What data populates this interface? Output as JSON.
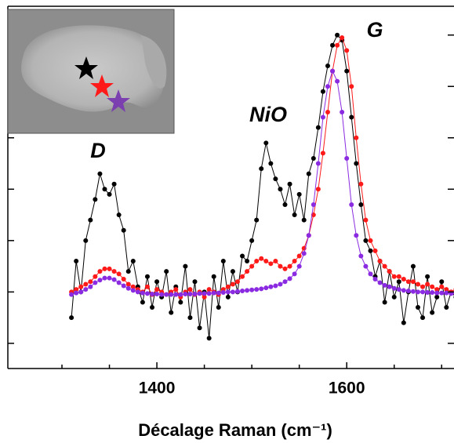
{
  "chart_data": {
    "type": "line",
    "xlabel": "Décalage Raman (cm⁻¹)",
    "annotations": [
      "D",
      "NiO",
      "G"
    ],
    "xlim": [
      1243,
      1713
    ],
    "ylim": [
      0.51,
      7.56
    ],
    "xticks": [
      1400,
      1600
    ],
    "xminor_ticks": [
      1300,
      1350,
      1450,
      1500,
      1550,
      1650,
      1700
    ],
    "yticks": [
      1,
      2,
      3,
      4,
      5,
      6,
      7
    ],
    "x": [
      1310,
      1315,
      1320,
      1325,
      1330,
      1335,
      1340,
      1345,
      1350,
      1355,
      1360,
      1365,
      1370,
      1375,
      1380,
      1385,
      1390,
      1395,
      1400,
      1405,
      1410,
      1415,
      1420,
      1425,
      1430,
      1435,
      1440,
      1445,
      1450,
      1455,
      1460,
      1465,
      1470,
      1475,
      1480,
      1485,
      1490,
      1495,
      1500,
      1505,
      1510,
      1515,
      1520,
      1525,
      1530,
      1535,
      1540,
      1545,
      1550,
      1555,
      1560,
      1565,
      1570,
      1575,
      1580,
      1585,
      1590,
      1595,
      1600,
      1605,
      1610,
      1615,
      1620,
      1625,
      1630,
      1635,
      1640,
      1645,
      1650,
      1655,
      1660,
      1665,
      1670,
      1675,
      1680,
      1685,
      1690,
      1695,
      1700,
      1705,
      1710,
      1715
    ],
    "series": [
      {
        "color": "#000000",
        "values": [
          1.5,
          2.6,
          2.0,
          3.0,
          3.4,
          3.8,
          4.3,
          4.0,
          3.9,
          4.1,
          3.5,
          3.2,
          2.4,
          2.6,
          2.1,
          1.8,
          2.3,
          1.7,
          2.2,
          1.9,
          2.4,
          1.6,
          2.1,
          1.8,
          2.5,
          1.5,
          2.2,
          1.3,
          2.0,
          1.1,
          2.3,
          1.7,
          2.6,
          1.9,
          2.4,
          2.0,
          2.7,
          2.6,
          3.0,
          3.4,
          4.4,
          4.9,
          4.5,
          4.2,
          4.0,
          3.7,
          4.1,
          3.5,
          3.9,
          3.4,
          4.3,
          4.6,
          5.2,
          5.9,
          6.4,
          6.8,
          7.0,
          6.9,
          6.3,
          5.4,
          4.5,
          3.7,
          3.0,
          2.8,
          2.3,
          2.6,
          1.8,
          2.4,
          1.9,
          2.2,
          1.4,
          2.0,
          2.5,
          1.7,
          1.5,
          2.3,
          1.6,
          1.9,
          2.2,
          1.7,
          2.0,
          1.9
        ]
      },
      {
        "color": "#ff1a1a",
        "values": [
          2.0,
          2.05,
          2.1,
          2.15,
          2.2,
          2.3,
          2.4,
          2.45,
          2.45,
          2.4,
          2.35,
          2.25,
          2.15,
          2.1,
          2.05,
          2.0,
          2.1,
          1.95,
          2.05,
          2.0,
          1.95,
          2.0,
          2.05,
          1.9,
          2.0,
          2.05,
          1.95,
          2.0,
          1.9,
          2.05,
          2.0,
          1.95,
          2.05,
          2.1,
          2.15,
          2.2,
          2.3,
          2.4,
          2.5,
          2.6,
          2.65,
          2.6,
          2.55,
          2.6,
          2.5,
          2.45,
          2.5,
          2.6,
          2.7,
          2.85,
          3.1,
          3.5,
          4.0,
          4.7,
          5.5,
          6.3,
          6.8,
          6.95,
          6.7,
          6.0,
          5.0,
          4.1,
          3.4,
          3.0,
          2.8,
          2.6,
          2.5,
          2.4,
          2.3,
          2.3,
          2.25,
          2.2,
          2.2,
          2.15,
          2.1,
          2.15,
          2.1,
          2.05,
          2.1,
          2.05,
          2.0,
          2.05
        ]
      },
      {
        "color": "#8a2be2",
        "values": [
          1.95,
          1.98,
          2.0,
          2.05,
          2.1,
          2.18,
          2.23,
          2.27,
          2.27,
          2.24,
          2.18,
          2.12,
          2.07,
          2.03,
          2.0,
          1.98,
          1.97,
          1.96,
          1.96,
          1.95,
          1.95,
          1.95,
          1.95,
          1.95,
          1.96,
          1.96,
          1.96,
          1.97,
          1.97,
          1.97,
          1.98,
          1.98,
          1.99,
          2.0,
          2.0,
          2.01,
          2.02,
          2.03,
          2.04,
          2.05,
          2.06,
          2.08,
          2.1,
          2.12,
          2.15,
          2.2,
          2.26,
          2.35,
          2.5,
          2.75,
          3.1,
          3.7,
          4.5,
          5.4,
          6.0,
          6.3,
          6.1,
          5.5,
          4.6,
          3.7,
          3.1,
          2.7,
          2.5,
          2.35,
          2.25,
          2.18,
          2.13,
          2.1,
          2.07,
          2.05,
          2.03,
          2.02,
          2.01,
          2.0,
          2.0,
          1.99,
          1.99,
          1.98,
          1.98,
          1.98,
          1.97,
          1.97
        ]
      }
    ]
  }
}
